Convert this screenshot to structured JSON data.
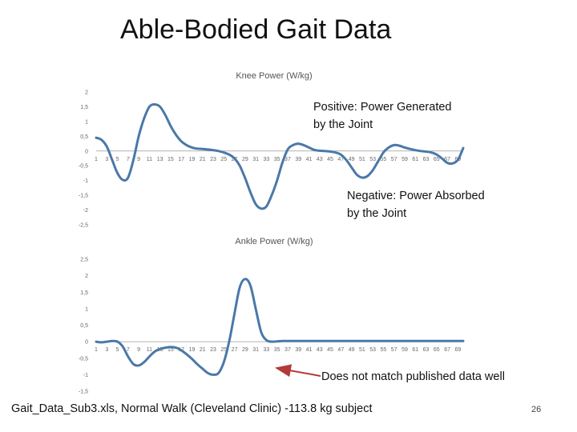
{
  "slide": {
    "title": "Able-Bodied Gait Data",
    "footer": "Gait_Data_Sub3.xls, Normal Walk (Cleveland Clinic) -113.8 kg subject",
    "page_number": "26"
  },
  "annotations": {
    "positive": [
      "Positive: Power Generated",
      "by the Joint"
    ],
    "negative": [
      "Negative: Power Absorbed",
      "by the Joint"
    ],
    "mismatch": "Does not match published data well"
  },
  "colors": {
    "line": "#4a78a8",
    "arrow": "#b23a3a",
    "axis": "#999999"
  },
  "chart_data": [
    {
      "type": "line",
      "title": "Knee Power (W/kg)",
      "ylim": [
        -2.5,
        2
      ],
      "y_ticks": [
        2,
        1.5,
        1,
        0.5,
        0,
        -0.5,
        -1,
        -1.5,
        -2,
        -2.5
      ],
      "y_tick_labels": [
        "2",
        "1,5",
        "1",
        "0,5",
        "0",
        "-0,5",
        "-1",
        "-1,5",
        "-2",
        "-2,5"
      ],
      "x_tick_labels": [
        "1",
        "3",
        "5",
        "7",
        "9",
        "11",
        "13",
        "15",
        "17",
        "19",
        "21",
        "23",
        "25",
        "27",
        "29",
        "31",
        "33",
        "35",
        "37",
        "39",
        "41",
        "43",
        "45",
        "47",
        "49",
        "51",
        "53",
        "55",
        "57",
        "59",
        "61",
        "63",
        "65",
        "67",
        "69"
      ],
      "x": [
        1,
        2,
        3,
        4,
        5,
        6,
        7,
        8,
        9,
        10,
        11,
        12,
        13,
        14,
        15,
        16,
        17,
        18,
        19,
        20,
        21,
        22,
        23,
        24,
        25,
        26,
        27,
        28,
        29,
        30,
        31,
        32,
        33,
        34,
        35,
        36,
        37,
        38,
        39,
        40,
        41,
        42,
        43,
        44,
        45,
        46,
        47,
        48,
        49,
        50,
        51,
        52,
        53,
        54,
        55,
        56,
        57,
        58,
        59,
        60,
        61,
        62,
        63,
        64,
        65,
        66,
        67,
        68,
        69,
        70
      ],
      "values": [
        0.45,
        0.38,
        0.15,
        -0.3,
        -0.75,
        -0.98,
        -0.9,
        -0.3,
        0.5,
        1.1,
        1.5,
        1.58,
        1.5,
        1.22,
        0.85,
        0.55,
        0.33,
        0.2,
        0.12,
        0.08,
        0.07,
        0.05,
        0.03,
        0.0,
        -0.05,
        -0.12,
        -0.25,
        -0.5,
        -0.92,
        -1.4,
        -1.8,
        -1.95,
        -1.88,
        -1.5,
        -1.0,
        -0.4,
        0.05,
        0.2,
        0.25,
        0.2,
        0.12,
        0.04,
        0.01,
        0.0,
        -0.02,
        -0.05,
        -0.12,
        -0.3,
        -0.55,
        -0.8,
        -0.9,
        -0.85,
        -0.65,
        -0.35,
        -0.05,
        0.12,
        0.2,
        0.18,
        0.12,
        0.07,
        0.03,
        0.0,
        -0.02,
        -0.05,
        -0.12,
        -0.25,
        -0.4,
        -0.42,
        -0.3,
        0.1
      ]
    },
    {
      "type": "line",
      "title": "Ankle Power (W/kg)",
      "ylim": [
        -1.5,
        2.5
      ],
      "y_ticks": [
        2.5,
        2,
        1.5,
        1,
        0.5,
        0,
        -0.5,
        -1,
        -1.5
      ],
      "y_tick_labels": [
        "2,5",
        "2",
        "1,5",
        "1",
        "0,5",
        "0",
        "-0,5",
        "-1",
        "-1,5"
      ],
      "x_tick_labels": [
        "1",
        "3",
        "5",
        "7",
        "9",
        "11",
        "13",
        "15",
        "17",
        "19",
        "21",
        "23",
        "25",
        "27",
        "29",
        "31",
        "33",
        "35",
        "37",
        "39",
        "41",
        "43",
        "45",
        "47",
        "49",
        "51",
        "53",
        "55",
        "57",
        "59",
        "61",
        "63",
        "65",
        "67",
        "69"
      ],
      "x": [
        1,
        2,
        3,
        4,
        5,
        6,
        7,
        8,
        9,
        10,
        11,
        12,
        13,
        14,
        15,
        16,
        17,
        18,
        19,
        20,
        21,
        22,
        23,
        24,
        25,
        26,
        27,
        28,
        29,
        30,
        31,
        32,
        33,
        34,
        35,
        36,
        37,
        38,
        39,
        40,
        41,
        42,
        43,
        44,
        45,
        46,
        47,
        48,
        49,
        50,
        51,
        52,
        53,
        54,
        55,
        56,
        57,
        58,
        59,
        60,
        61,
        62,
        63,
        64,
        65,
        66,
        67,
        68,
        69,
        70
      ],
      "values": [
        0.0,
        -0.02,
        0.0,
        0.02,
        0.0,
        -0.15,
        -0.45,
        -0.68,
        -0.72,
        -0.62,
        -0.45,
        -0.3,
        -0.22,
        -0.18,
        -0.16,
        -0.18,
        -0.26,
        -0.38,
        -0.52,
        -0.68,
        -0.82,
        -0.95,
        -1.0,
        -0.95,
        -0.62,
        0.0,
        0.85,
        1.65,
        1.9,
        1.7,
        1.0,
        0.3,
        0.05,
        0.0,
        0.01,
        0.02,
        0.02,
        0.02,
        0.02,
        0.02,
        0.02,
        0.02,
        0.02,
        0.02,
        0.02,
        0.02,
        0.02,
        0.02,
        0.02,
        0.02,
        0.02,
        0.02,
        0.02,
        0.02,
        0.02,
        0.02,
        0.02,
        0.02,
        0.02,
        0.02,
        0.02,
        0.02,
        0.02,
        0.02,
        0.02,
        0.02,
        0.02,
        0.02,
        0.02,
        0.02
      ]
    }
  ]
}
